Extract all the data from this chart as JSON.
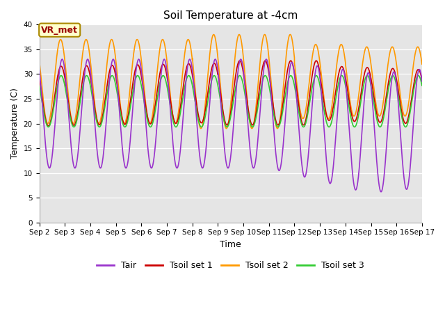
{
  "title": "Soil Temperature at -4cm",
  "xlabel": "Time",
  "ylabel": "Temperature (C)",
  "ylim": [
    0,
    40
  ],
  "yticks": [
    0,
    5,
    10,
    15,
    20,
    25,
    30,
    35,
    40
  ],
  "xtick_labels": [
    "Sep 2",
    "Sep 3",
    "Sep 4",
    "Sep 5",
    "Sep 6",
    "Sep 7",
    "Sep 8",
    "Sep 9",
    "Sep 10",
    "Sep 11",
    "Sep 12",
    "Sep 13",
    "Sep 14",
    "Sep 15",
    "Sep 16",
    "Sep 17"
  ],
  "colors": {
    "Tair": "#9933cc",
    "Tsoil1": "#cc0000",
    "Tsoil2": "#ff9900",
    "Tsoil3": "#33cc33"
  },
  "annotation": "VR_met",
  "annotation_bg": "#ffffcc",
  "annotation_border": "#aa8800",
  "plot_bg": "#e5e5e5",
  "fig_bg": "#ffffff",
  "linewidth": 1.2
}
